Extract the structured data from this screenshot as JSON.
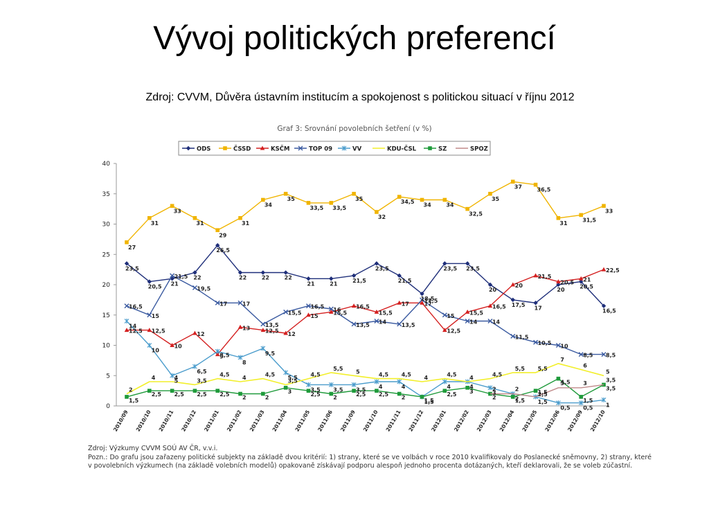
{
  "slide": {
    "title": "Vývoj politických preferencí",
    "subtitle": "Zdroj: CVVM, Důvěra ústavním institucím a spokojenost s politickou situací v říjnu 2012"
  },
  "notes": {
    "source": "Zdroj: Výzkumy CVVM SOÚ AV ČR, v.v.i.",
    "note_line1": "Pozn.: Do grafu jsou zařazeny politické subjekty na základě dvou kritérií: 1) strany, které se ve volbách v roce 2010 kvalifikovaly do Poslanecké sněmovny, 2) strany, které",
    "note_line2": "v povolebních výzkumech (na základě volebních modelů) opakovaně získávají podporu alespoň jednoho procenta dotázaných, kteří deklarovali, že se voleb zúčastní."
  },
  "chart_data": {
    "type": "line",
    "title": "Graf 3: Srovnání povolebních šetření (v %)",
    "ylim": [
      0,
      40
    ],
    "yticks": [
      0,
      5,
      10,
      15,
      20,
      25,
      30,
      35,
      40
    ],
    "grid": false,
    "legend_position": "top",
    "categories": [
      "2010/09",
      "2010/10",
      "2010/11",
      "2010/12",
      "2011/01",
      "2011/02",
      "2011/03",
      "2011/04",
      "2011/05",
      "2011/06",
      "2011/09",
      "2011/10",
      "2011/11",
      "2011/12",
      "2012/01",
      "2012/02",
      "2012/03",
      "2012/04",
      "2012/05",
      "2012/06",
      "2012/09",
      "2012/10"
    ],
    "series": [
      {
        "name": "ODS",
        "color": "#1f2f7a",
        "marker": "diamond",
        "values": [
          23.5,
          20.5,
          21,
          22,
          26.5,
          22,
          22,
          22,
          21,
          21,
          21.5,
          23.5,
          21.5,
          18.5,
          23.5,
          23.5,
          20,
          17.5,
          17,
          20,
          20.5,
          16.5
        ]
      },
      {
        "name": "ČSSD",
        "color": "#f0b400",
        "marker": "square",
        "values": [
          27,
          31,
          33,
          31,
          29,
          31,
          34,
          35,
          33.5,
          33.5,
          35,
          32,
          34.5,
          34,
          34,
          32.5,
          35,
          37,
          36.5,
          31,
          31.5,
          33
        ]
      },
      {
        "name": "KSČM",
        "color": "#d42020",
        "marker": "triangle",
        "values": [
          12.5,
          12.5,
          10,
          12,
          8.5,
          13,
          12.5,
          12,
          15,
          15.5,
          16.5,
          15.5,
          17,
          17,
          12.5,
          15.5,
          16.5,
          20,
          21.5,
          20.5,
          21,
          22.5
        ]
      },
      {
        "name": "TOP 09",
        "color": "#3a5aa0",
        "marker": "x",
        "values": [
          16.5,
          15,
          21.5,
          19.5,
          17,
          17,
          13.5,
          15.5,
          16.5,
          16,
          13.5,
          14,
          13.5,
          17.5,
          15,
          14,
          14,
          11.5,
          10.5,
          10,
          8.5,
          8.5
        ]
      },
      {
        "name": "VV",
        "color": "#4a9ccc",
        "marker": "star",
        "values": [
          14,
          10,
          5,
          6.5,
          9,
          8,
          9.5,
          5.5,
          3.5,
          3.5,
          3.5,
          4,
          4,
          1.5,
          4,
          4,
          3,
          2,
          1.5,
          0.5,
          0.5,
          1
        ]
      },
      {
        "name": "KDU-ČSL",
        "color": "#f2ef2a",
        "marker": "none",
        "values": [
          2,
          4,
          4,
          3.5,
          4.5,
          4,
          4.5,
          3.5,
          4.5,
          5.5,
          5,
          4.5,
          4.5,
          4,
          4.5,
          4,
          4.5,
          5.5,
          5.5,
          7,
          6,
          5
        ]
      },
      {
        "name": "SZ",
        "color": "#1e9a3a",
        "marker": "square",
        "values": [
          1.5,
          2.5,
          2.5,
          2.5,
          2.5,
          2,
          2,
          3,
          2.5,
          2,
          2.5,
          2.5,
          2,
          1.5,
          2.5,
          3,
          2,
          1.5,
          2.5,
          4.5,
          1.5,
          3.5
        ]
      },
      {
        "name": "SPOZ",
        "color": "#c08a8a",
        "marker": "none",
        "values": [
          null,
          null,
          null,
          null,
          null,
          null,
          null,
          null,
          null,
          null,
          null,
          null,
          null,
          null,
          null,
          null,
          2,
          2,
          1.5,
          3,
          3,
          3.5
        ]
      }
    ],
    "data_labels": [
      {
        "series": "ODS",
        "labels": [
          "23,5",
          "20,5",
          "21",
          "22",
          "26,5",
          "22",
          "22",
          "22",
          "21",
          "21",
          "21,5",
          "23,5",
          "21,5",
          "18,5",
          "23,5",
          "23,5",
          "20",
          "17,5",
          "17",
          "20",
          "20,5",
          "16,5"
        ]
      },
      {
        "series": "ČSSD",
        "labels": [
          "27",
          "31",
          "33",
          "31",
          "29",
          "31",
          "34",
          "35",
          "33,5",
          "33,5",
          "35",
          "32",
          "34,5",
          "34",
          "34",
          "32,5",
          "35",
          "37",
          "36,5",
          "31",
          "31,5",
          "33"
        ]
      },
      {
        "series": "KSČM",
        "labels": [
          "12,5",
          "12,5",
          "10",
          "12",
          "8,5",
          "13",
          "12,5",
          "12",
          "15",
          "15,5",
          "16,5",
          "15,5",
          "17",
          "17",
          "12,5",
          "15,5",
          "16,5",
          "20",
          "21,5",
          "20,5",
          "21",
          "22,5"
        ]
      },
      {
        "series": "TOP 09",
        "labels": [
          "16,5",
          "15",
          "21,5",
          "19,5",
          "17",
          "17",
          "13,5",
          "15,5",
          "16,5",
          "16",
          "13,5",
          "14",
          "13,5",
          "17,5",
          "15",
          "14",
          "14",
          "11,5",
          "10,5",
          "10",
          "8,5",
          "8,5"
        ]
      },
      {
        "series": "VV",
        "labels": [
          "14",
          "10",
          "5",
          "6,5",
          "9",
          "8",
          "9,5",
          "5,5",
          "3,5",
          "3,5",
          "3,5",
          "4",
          "4",
          "1,5",
          "4",
          "4",
          "3",
          "2",
          "1,5",
          "0,5",
          "0,5",
          "1"
        ]
      },
      {
        "series": "KDU-ČSL",
        "labels": [
          "2",
          "4",
          "4",
          "3,5",
          "4,5",
          "4",
          "4,5",
          "3,5",
          "4,5",
          "5,5",
          "5",
          "4,5",
          "4,5",
          "4",
          "4,5",
          "4",
          "4,5",
          "5,5",
          "5,5",
          "7",
          "6",
          "5"
        ]
      },
      {
        "series": "SZ",
        "labels": [
          "1,5",
          "2,5",
          "2,5",
          "2,5",
          "2,5",
          "2",
          "2",
          "3",
          "2,5",
          "2",
          "2,5",
          "2,5",
          "2",
          "1,5",
          "2,5",
          "3",
          "2",
          "1,5",
          "2,5",
          "4,5",
          "1,5",
          "3,5"
        ]
      },
      {
        "series": "SPOZ",
        "labels": [
          "",
          "",
          "",
          "",
          "",
          "",
          "",
          "",
          "",
          "",
          "",
          "",
          "",
          "",
          "",
          "",
          "2",
          "2",
          "1,5",
          "3",
          "3",
          "3,5"
        ]
      }
    ]
  }
}
